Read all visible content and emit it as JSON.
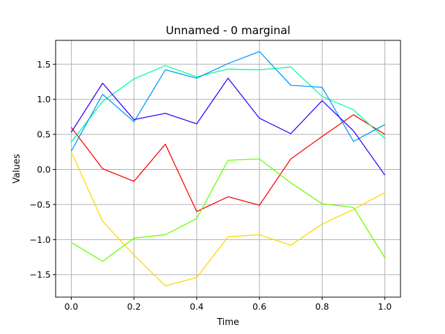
{
  "chart_data": {
    "type": "line",
    "title": "Unnamed - 0 marginal",
    "xlabel": "Time",
    "ylabel": "Values",
    "xlim": [
      -0.05,
      1.05
    ],
    "ylim": [
      -1.82,
      1.84
    ],
    "grid": true,
    "x": [
      0.0,
      0.1,
      0.2,
      0.3,
      0.4,
      0.5,
      0.6,
      0.7,
      0.8,
      0.9,
      1.0
    ],
    "x_ticks": [
      "0.0",
      "0.2",
      "0.4",
      "0.6",
      "0.8",
      "1.0"
    ],
    "y_ticks": [
      "−1.5",
      "−1.0",
      "−0.5",
      "0.0",
      "0.5",
      "1.0",
      "1.5"
    ],
    "series": [
      {
        "color": "#ff0000",
        "values": [
          0.6,
          0.01,
          -0.17,
          0.36,
          -0.6,
          -0.39,
          -0.51,
          0.15,
          0.47,
          0.78,
          0.5
        ]
      },
      {
        "color": "#ffd700",
        "values": [
          0.25,
          -0.74,
          -1.22,
          -1.66,
          -1.54,
          -0.96,
          -0.93,
          -1.08,
          -0.78,
          -0.57,
          -0.33
        ]
      },
      {
        "color": "#66ff00",
        "values": [
          -1.04,
          -1.31,
          -0.98,
          -0.93,
          -0.7,
          0.13,
          0.15,
          -0.19,
          -0.49,
          -0.54,
          -1.26
        ]
      },
      {
        "color": "#00ff99",
        "values": [
          0.39,
          0.97,
          1.29,
          1.48,
          1.32,
          1.43,
          1.42,
          1.46,
          1.04,
          0.85,
          0.44
        ]
      },
      {
        "color": "#0099ff",
        "values": [
          0.26,
          1.07,
          0.68,
          1.42,
          1.3,
          1.51,
          1.68,
          1.2,
          1.17,
          0.4,
          0.64
        ]
      },
      {
        "color": "#3300ff",
        "values": [
          0.53,
          1.23,
          0.71,
          0.8,
          0.65,
          1.3,
          0.73,
          0.51,
          0.98,
          0.55,
          -0.08
        ]
      }
    ]
  }
}
